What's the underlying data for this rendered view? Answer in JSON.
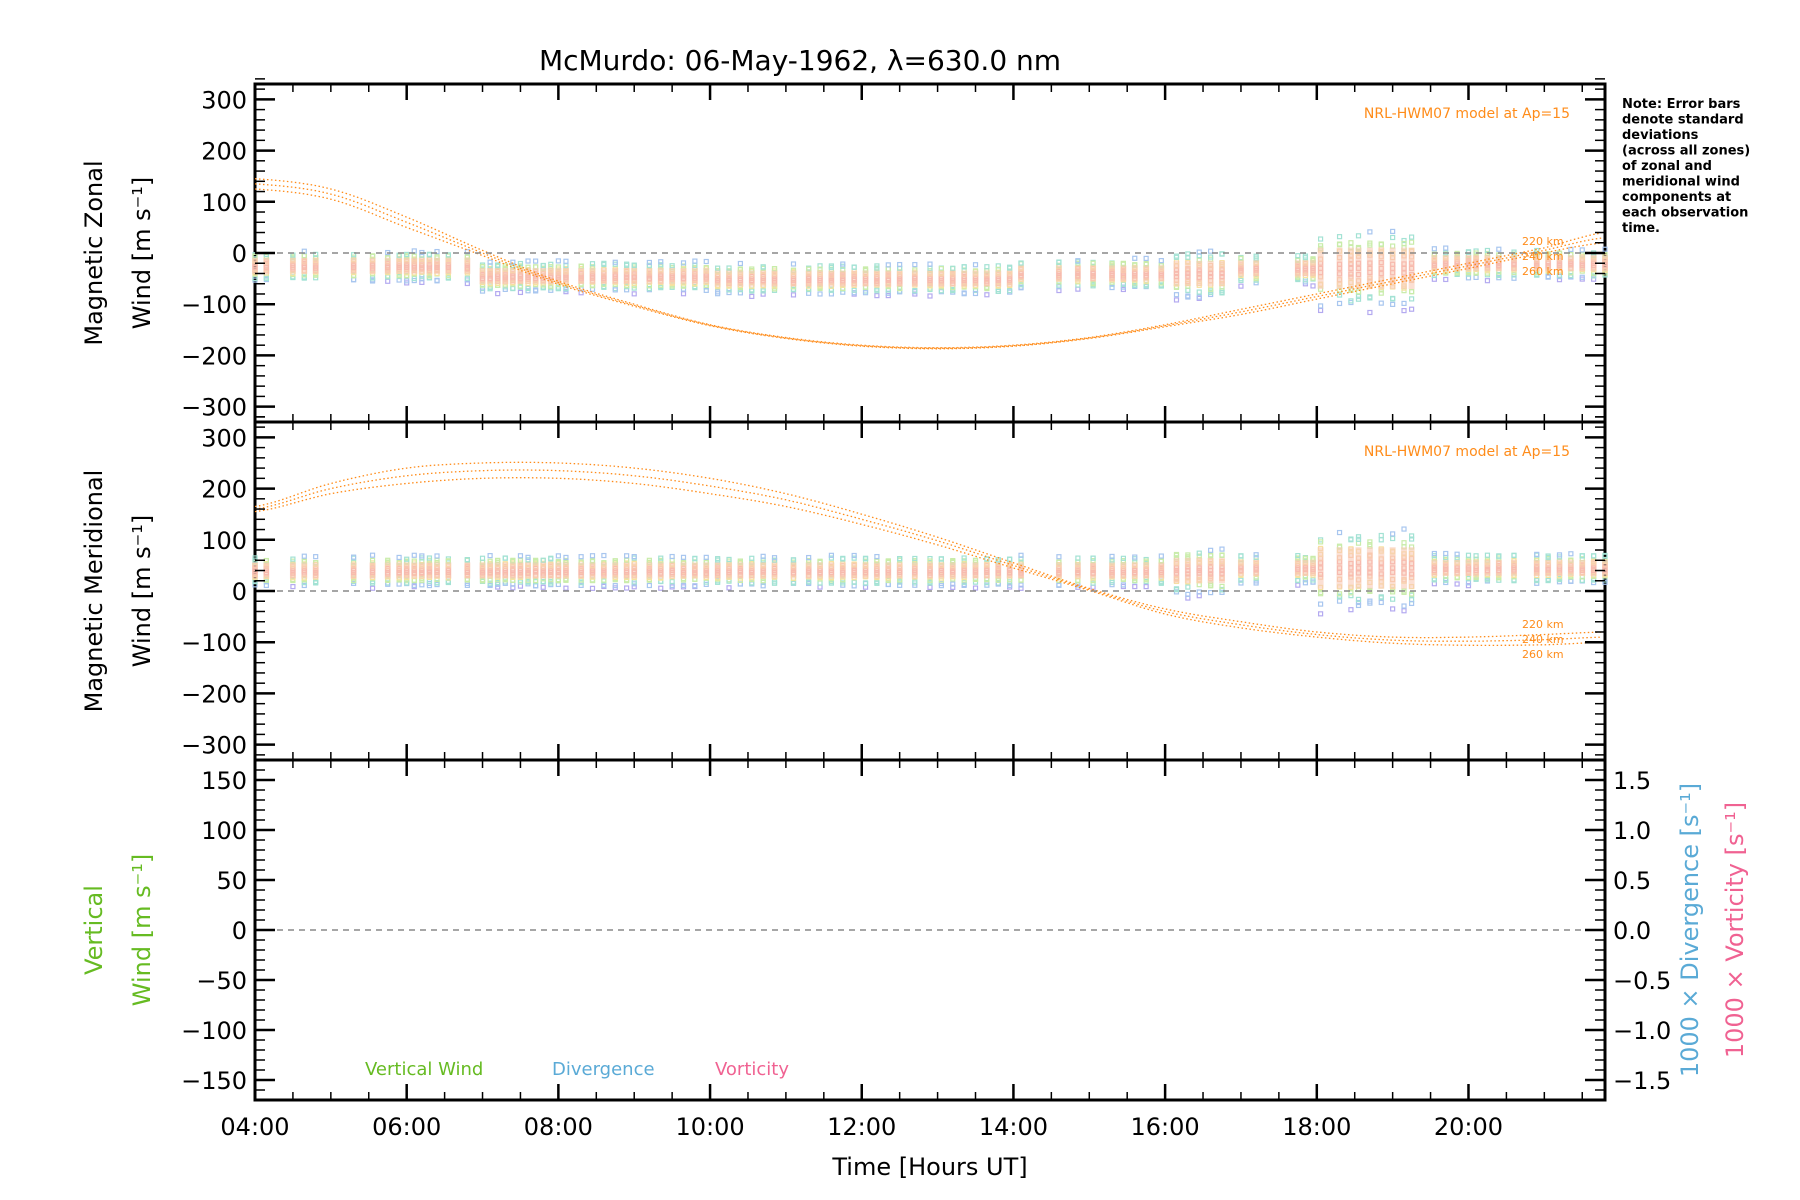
{
  "title": "McMurdo: 06-May-1962, λ=630.0 nm",
  "note_lines": [
    "Note: Error bars",
    "denote standard",
    "deviations",
    "(across all zones)",
    "of zonal and",
    "meridional wind",
    "components at",
    "each observation",
    "time."
  ],
  "x_axis": {
    "label": "Time [Hours UT]",
    "ticks": [
      "04:00",
      "06:00",
      "08:00",
      "10:00",
      "12:00",
      "14:00",
      "16:00",
      "18:00",
      "20:00"
    ],
    "range_hours": [
      4,
      21.8
    ]
  },
  "panels": {
    "zonal": {
      "ylabel_line1": "Magnetic Zonal",
      "ylabel_line2": "Wind [m s⁻¹]",
      "yticks": [
        "300",
        "200",
        "100",
        "0",
        "−100",
        "−200",
        "−300"
      ],
      "ylim": [
        -330,
        330
      ],
      "model_label": "NRL-HWM07 model at Ap=15",
      "alt_labels": [
        "220 km",
        "240 km",
        "260 km"
      ]
    },
    "meridional": {
      "ylabel_line1": "Magnetic Meridional",
      "ylabel_line2": "Wind [m s⁻¹]",
      "yticks": [
        "300",
        "200",
        "100",
        "0",
        "−100",
        "−200",
        "−300"
      ],
      "ylim": [
        -330,
        330
      ],
      "model_label": "NRL-HWM07 model at Ap=15",
      "alt_labels": [
        "220 km",
        "240 km",
        "260 km"
      ]
    },
    "vertical": {
      "ylabel_line1": "Vertical",
      "ylabel_line2": "Wind [m s⁻¹]",
      "yticks": [
        "150",
        "100",
        "50",
        "0",
        "−50",
        "−100",
        "−150"
      ],
      "ylim": [
        -170,
        170
      ],
      "right_ticks": [
        "1.5",
        "1.0",
        "0.5",
        "0.0",
        "−0.5",
        "−1.0",
        "−1.5"
      ],
      "right_label_1": "1000 × Divergence [s⁻¹]",
      "right_label_2": "1000 × Vorticity [s⁻¹]",
      "legend": [
        "Vertical Wind",
        "Divergence",
        "Vorticity"
      ]
    }
  },
  "colors": {
    "model": "#ff8c1a",
    "vertical": "#66bb22",
    "divergence": "#5aaad6",
    "vorticity": "#f06292",
    "zero_line": "#888888"
  },
  "chart_data": [
    {
      "type": "scatter",
      "title": "Magnetic Zonal Wind",
      "ylabel": "Magnetic Zonal Wind [m s⁻¹]",
      "xlabel": "Time [Hours UT]",
      "ylim": [
        -330,
        330
      ],
      "observation_times": [
        4.0,
        4.15,
        4.5,
        4.65,
        4.8,
        5.3,
        5.55,
        5.75,
        5.9,
        6.0,
        6.1,
        6.2,
        6.3,
        6.4,
        6.55,
        6.8,
        7.0,
        7.1,
        7.2,
        7.3,
        7.4,
        7.5,
        7.6,
        7.7,
        7.8,
        7.9,
        8.0,
        8.1,
        8.3,
        8.45,
        8.6,
        8.75,
        8.9,
        9.0,
        9.2,
        9.35,
        9.5,
        9.65,
        9.8,
        9.95,
        10.1,
        10.25,
        10.4,
        10.55,
        10.7,
        10.85,
        11.1,
        11.3,
        11.45,
        11.6,
        11.75,
        11.9,
        12.05,
        12.2,
        12.35,
        12.5,
        12.7,
        12.9,
        13.05,
        13.2,
        13.35,
        13.5,
        13.65,
        13.8,
        13.95,
        14.1,
        14.6,
        14.85,
        15.05,
        15.3,
        15.45,
        15.6,
        15.75,
        15.95,
        16.15,
        16.3,
        16.45,
        16.6,
        16.75,
        17.0,
        17.2,
        17.75,
        17.85,
        17.95,
        18.05,
        18.3,
        18.45,
        18.55,
        18.7,
        18.85,
        19.0,
        19.15,
        19.25,
        19.55,
        19.7,
        19.85,
        20.0,
        20.1,
        20.25,
        20.4,
        20.6,
        20.9,
        21.05,
        21.2,
        21.35,
        21.5,
        21.65,
        21.8
      ],
      "series": [
        {
          "name": "220 km",
          "x": [
            4,
            5,
            6,
            7,
            8,
            9,
            10,
            11,
            12,
            13,
            14,
            15,
            16,
            17,
            18,
            19,
            20,
            21,
            21.8
          ],
          "y": [
            145,
            125,
            70,
            5,
            -55,
            -100,
            -140,
            -165,
            -180,
            -185,
            -180,
            -165,
            -140,
            -110,
            -80,
            -50,
            -20,
            10,
            40
          ]
        },
        {
          "name": "240 km",
          "x": [
            4,
            5,
            6,
            7,
            8,
            9,
            10,
            11,
            12,
            13,
            14,
            15,
            16,
            17,
            18,
            19,
            20,
            21,
            21.8
          ],
          "y": [
            135,
            115,
            60,
            0,
            -58,
            -102,
            -141,
            -166,
            -181,
            -186,
            -181,
            -166,
            -142,
            -115,
            -85,
            -55,
            -25,
            5,
            30
          ]
        },
        {
          "name": "260 km",
          "x": [
            4,
            5,
            6,
            7,
            8,
            9,
            10,
            11,
            12,
            13,
            14,
            15,
            16,
            17,
            18,
            19,
            20,
            21,
            21.8
          ],
          "y": [
            125,
            105,
            50,
            -5,
            -61,
            -104,
            -142,
            -167,
            -182,
            -187,
            -182,
            -167,
            -144,
            -120,
            -90,
            -60,
            -30,
            0,
            20
          ]
        }
      ]
    },
    {
      "type": "scatter",
      "title": "Magnetic Meridional Wind",
      "ylabel": "Magnetic Meridional Wind [m s⁻¹]",
      "xlabel": "Time [Hours UT]",
      "ylim": [
        -330,
        330
      ],
      "series": [
        {
          "name": "220 km",
          "x": [
            4,
            5,
            6,
            7,
            8,
            9,
            10,
            11,
            12,
            13,
            14,
            15,
            16,
            17,
            18,
            19,
            20,
            21,
            21.8
          ],
          "y": [
            165,
            210,
            240,
            250,
            250,
            240,
            220,
            190,
            150,
            105,
            55,
            5,
            -35,
            -60,
            -80,
            -90,
            -90,
            -85,
            -80
          ]
        },
        {
          "name": "240 km",
          "x": [
            4,
            5,
            6,
            7,
            8,
            9,
            10,
            11,
            12,
            13,
            14,
            15,
            16,
            17,
            18,
            19,
            20,
            21,
            21.8
          ],
          "y": [
            160,
            200,
            225,
            235,
            235,
            225,
            205,
            178,
            140,
            98,
            50,
            3,
            -40,
            -66,
            -85,
            -96,
            -98,
            -95,
            -90
          ]
        },
        {
          "name": "260 km",
          "x": [
            4,
            5,
            6,
            7,
            8,
            9,
            10,
            11,
            12,
            13,
            14,
            15,
            16,
            17,
            18,
            19,
            20,
            21,
            21.8
          ],
          "y": [
            155,
            190,
            210,
            220,
            220,
            210,
            190,
            165,
            130,
            90,
            45,
            1,
            -45,
            -72,
            -90,
            -102,
            -106,
            -105,
            -100
          ]
        }
      ]
    },
    {
      "type": "scatter",
      "title": "Vertical Wind / Divergence / Vorticity",
      "ylabel": "Vertical Wind [m s⁻¹]",
      "xlabel": "Time [Hours UT]",
      "ylim": [
        -170,
        170
      ],
      "y2lim": [
        -1.7,
        1.7
      ],
      "series": [
        {
          "name": "Vertical Wind",
          "values": []
        },
        {
          "name": "Divergence",
          "values": []
        },
        {
          "name": "Vorticity",
          "values": []
        }
      ]
    }
  ]
}
